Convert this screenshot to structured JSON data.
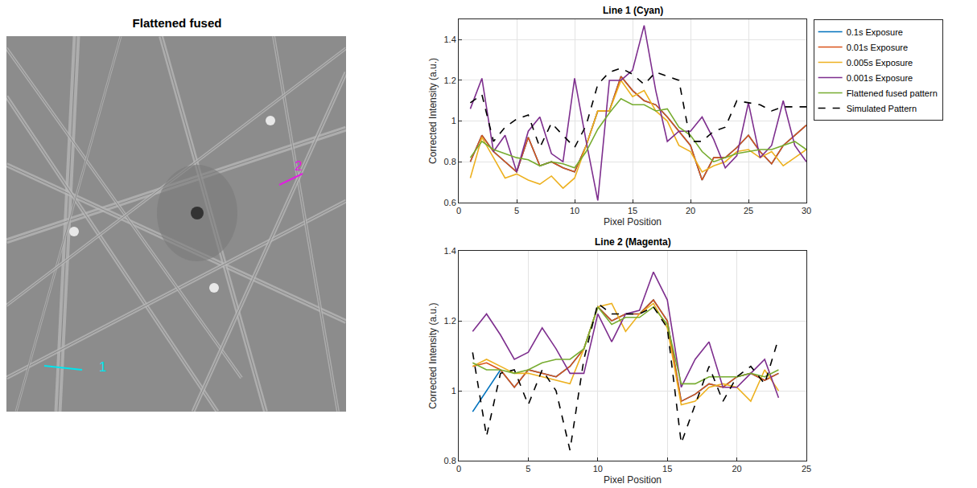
{
  "image_panel": {
    "title": "Flattened fused",
    "markers": [
      {
        "label": "1",
        "color": "#00e5ee"
      },
      {
        "label": "2",
        "color": "#e020e0"
      }
    ]
  },
  "chart_data": [
    {
      "type": "line",
      "title": "Line 1 (Cyan)",
      "x_label": "Pixel Position",
      "y_label": "Corrected Intensity (a.u.)",
      "x": [
        1,
        2,
        3,
        4,
        5,
        6,
        7,
        8,
        9,
        10,
        11,
        12,
        13,
        14,
        15,
        16,
        17,
        18,
        19,
        20,
        21,
        22,
        23,
        24,
        25,
        26,
        27,
        28,
        29,
        30
      ],
      "xlim": [
        0,
        30
      ],
      "xticks": [
        0,
        5,
        10,
        15,
        20,
        25,
        30
      ],
      "ylim": [
        0.6,
        1.5
      ],
      "yticks": [
        0.6,
        0.8,
        1,
        1.2,
        1.4
      ],
      "grid": true,
      "legend": "right",
      "series": [
        {
          "name": "0.1s Exposure",
          "color": "#0072bd",
          "line_style": "solid",
          "values": [
            0.8,
            0.93,
            0.85,
            0.8,
            0.75,
            0.92,
            0.78,
            0.8,
            0.77,
            0.75,
            0.88,
            1.05,
            1.05,
            1.22,
            1.15,
            1.1,
            1.08,
            1.02,
            0.95,
            0.88,
            0.71,
            0.82,
            0.82,
            0.87,
            0.93,
            0.85,
            0.79,
            0.88,
            0.93,
            0.98
          ]
        },
        {
          "name": "0.01s Exposure",
          "color": "#d95319",
          "line_style": "solid",
          "values": [
            0.8,
            0.93,
            0.85,
            0.8,
            0.75,
            0.92,
            0.78,
            0.8,
            0.77,
            0.75,
            0.88,
            1.05,
            1.05,
            1.22,
            1.15,
            1.1,
            1.08,
            1.02,
            0.95,
            0.88,
            0.71,
            0.82,
            0.82,
            0.87,
            0.93,
            0.85,
            0.79,
            0.88,
            0.93,
            0.98
          ]
        },
        {
          "name": "0.005s Exposure",
          "color": "#edb120",
          "line_style": "solid",
          "values": [
            0.72,
            0.92,
            0.82,
            0.72,
            0.74,
            0.71,
            0.69,
            0.73,
            0.67,
            0.72,
            0.88,
            1.05,
            1.05,
            1.2,
            1.12,
            1.15,
            1.05,
            1.0,
            0.88,
            0.85,
            0.75,
            0.78,
            0.8,
            0.85,
            0.86,
            0.82,
            0.85,
            0.78,
            0.82,
            0.86
          ]
        },
        {
          "name": "0.001s Exposure",
          "color": "#7e2f8e",
          "line_style": "solid",
          "values": [
            1.06,
            1.21,
            0.85,
            0.93,
            0.75,
            0.95,
            1.02,
            0.84,
            0.8,
            1.21,
            0.9,
            0.61,
            1.2,
            1.2,
            1.25,
            1.47,
            1.15,
            0.9,
            0.95,
            0.95,
            1.02,
            0.91,
            0.77,
            0.83,
            1.09,
            0.82,
            0.88,
            1.1,
            0.88,
            0.8
          ]
        },
        {
          "name": "Flattened fused pattern",
          "color": "#77ac30",
          "line_style": "solid",
          "values": [
            0.82,
            0.9,
            0.86,
            0.84,
            0.82,
            0.81,
            0.78,
            0.8,
            0.79,
            0.77,
            0.85,
            0.96,
            1.04,
            1.11,
            1.08,
            1.08,
            1.05,
            1.06,
            0.97,
            0.93,
            0.85,
            0.8,
            0.82,
            0.84,
            0.85,
            0.86,
            0.86,
            0.88,
            0.9,
            0.86
          ]
        },
        {
          "name": "Simulated Pattern",
          "color": "#000000",
          "line_style": "dashed",
          "values": [
            1.09,
            1.13,
            0.9,
            0.97,
            1.01,
            1.03,
            0.87,
            0.99,
            0.93,
            0.87,
            0.98,
            1.18,
            1.24,
            1.26,
            1.23,
            1.18,
            1.24,
            1.22,
            1.2,
            0.9,
            0.9,
            0.95,
            0.97,
            1.1,
            1.09,
            1.08,
            1.05,
            1.07,
            1.07,
            1.07
          ]
        }
      ]
    },
    {
      "type": "line",
      "title": "Line 2 (Magenta)",
      "x_label": "Pixel Position",
      "y_label": "Corrected Intensity (a.u.)",
      "x": [
        1,
        2,
        3,
        4,
        5,
        6,
        7,
        8,
        9,
        10,
        11,
        12,
        13,
        14,
        15,
        16,
        17,
        18,
        19,
        20,
        21,
        22,
        23
      ],
      "xlim": [
        0,
        25
      ],
      "xticks": [
        0,
        5,
        10,
        15,
        20,
        25
      ],
      "ylim": [
        0.8,
        1.4
      ],
      "yticks": [
        0.8,
        1,
        1.2,
        1.4
      ],
      "grid": true,
      "series": [
        {
          "name": "0.1s Exposure",
          "color": "#0072bd",
          "line_style": "solid",
          "values": [
            0.94,
            1.0,
            1.06,
            1.01,
            1.06,
            1.05,
            1.04,
            1.07,
            1.12,
            1.24,
            1.2,
            1.22,
            1.22,
            1.26,
            1.2,
            0.97,
            0.99,
            1.02,
            1.01,
            1.04,
            1.05,
            1.03,
            1.05
          ]
        },
        {
          "name": "0.01s Exposure",
          "color": "#d95319",
          "line_style": "solid",
          "values": [
            1.07,
            1.08,
            1.06,
            1.01,
            1.06,
            1.05,
            1.04,
            1.07,
            1.12,
            1.24,
            1.2,
            1.22,
            1.22,
            1.26,
            1.2,
            0.97,
            0.99,
            1.02,
            1.01,
            1.04,
            1.05,
            1.03,
            1.05
          ]
        },
        {
          "name": "0.005s Exposure",
          "color": "#edb120",
          "line_style": "solid",
          "values": [
            1.07,
            1.09,
            1.07,
            1.05,
            1.05,
            1.04,
            1.03,
            1.02,
            1.12,
            1.24,
            1.25,
            1.17,
            1.22,
            1.25,
            1.18,
            0.96,
            0.97,
            1.01,
            1.02,
            1.01,
            0.97,
            1.06,
            1.0
          ]
        },
        {
          "name": "0.001s Exposure",
          "color": "#7e2f8e",
          "line_style": "solid",
          "values": [
            1.17,
            1.22,
            1.16,
            1.09,
            1.11,
            1.18,
            1.12,
            1.05,
            1.05,
            1.22,
            1.14,
            1.22,
            1.23,
            1.34,
            1.26,
            1.01,
            1.09,
            1.14,
            1.01,
            1.01,
            1.05,
            1.09,
            0.98
          ]
        },
        {
          "name": "Flattened fused pattern",
          "color": "#77ac30",
          "line_style": "solid",
          "values": [
            1.08,
            1.06,
            1.06,
            1.05,
            1.06,
            1.08,
            1.09,
            1.09,
            1.12,
            1.24,
            1.19,
            1.21,
            1.21,
            1.24,
            1.19,
            1.02,
            1.02,
            1.04,
            1.04,
            1.04,
            1.05,
            1.04,
            1.06
          ]
        },
        {
          "name": "Simulated Pattern",
          "color": "#000000",
          "line_style": "dashed",
          "values": [
            1.11,
            0.87,
            1.05,
            1.06,
            0.96,
            1.06,
            1.0,
            0.83,
            1.09,
            1.25,
            1.22,
            1.22,
            1.22,
            1.24,
            1.18,
            0.85,
            0.96,
            1.07,
            0.97,
            1.04,
            1.07,
            1.02,
            1.15
          ]
        }
      ]
    }
  ]
}
